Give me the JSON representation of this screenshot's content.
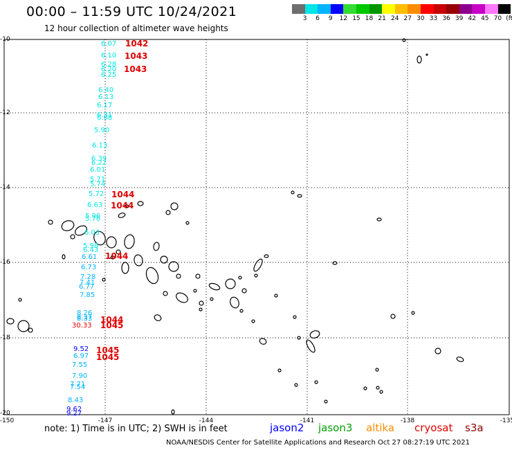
{
  "title": "00:00 – 11:59 UTC 10/24/2021",
  "subtitle": "12 hour collection of altimeter wave heights",
  "colorbar": {
    "colors": [
      "#6e6e6e",
      "#00e5e5",
      "#00b4ff",
      "#0000ff",
      "#32dc32",
      "#00c800",
      "#009600",
      "#ffff00",
      "#ffbe00",
      "#ff8c00",
      "#ff0000",
      "#c80000",
      "#960000",
      "#8c008c",
      "#c800c8",
      "#ff78ff",
      "#000000"
    ],
    "labels": [
      "3",
      "6",
      "9",
      "12",
      "15",
      "18",
      "21",
      "24",
      "27",
      "30",
      "33",
      "36",
      "39",
      "42",
      "45",
      "70",
      "(ft)"
    ]
  },
  "axes": {
    "y_labels": [
      "-10",
      "-12",
      "-14",
      "-16",
      "-18",
      "-20"
    ],
    "x_labels": [
      "-150",
      "-147",
      "-144",
      "-141",
      "-138",
      "-135"
    ]
  },
  "observations": [
    {
      "v": "6.07",
      "c": "#00e5e5"
    },
    {
      "v": "6.10",
      "c": "#00e5e5"
    },
    {
      "v": "6.28",
      "c": "#00e5e5"
    },
    {
      "v": "6.20",
      "c": "#00e5e5"
    },
    {
      "v": "6.25",
      "c": "#00e5e5"
    },
    {
      "v": "6.40",
      "c": "#00e5e5"
    },
    {
      "v": "6.13",
      "c": "#00e5e5"
    },
    {
      "v": "6.17",
      "c": "#00e5e5"
    },
    {
      "v": "6.31",
      "c": "#00e5e5"
    },
    {
      "v": "6.08",
      "c": "#00e5e5"
    },
    {
      "v": "5.90",
      "c": "#00e5e5"
    },
    {
      "v": "6.13",
      "c": "#00e5e5"
    },
    {
      "v": "6.39",
      "c": "#00e5e5"
    },
    {
      "v": "6.22",
      "c": "#00e5e5"
    },
    {
      "v": "6.01",
      "c": "#00e5e5"
    },
    {
      "v": "5.71",
      "c": "#00e5e5"
    },
    {
      "v": "5.74",
      "c": "#00e5e5"
    },
    {
      "v": "5.72",
      "c": "#00e5e5"
    },
    {
      "v": "6.63",
      "c": "#00e5e5"
    },
    {
      "v": "5.96",
      "c": "#00e5e5"
    },
    {
      "v": "5.76",
      "c": "#00e5e5"
    },
    {
      "v": "6.03",
      "c": "#00e5e5"
    },
    {
      "v": "5.98",
      "c": "#00e5e5"
    },
    {
      "v": "6.43",
      "c": "#00e5e5"
    },
    {
      "v": "6.61",
      "c": "#00b4ff"
    },
    {
      "v": "6.73",
      "c": "#00b4ff"
    },
    {
      "v": "7.28",
      "c": "#00b4ff"
    },
    {
      "v": "7.41",
      "c": "#00b4ff"
    },
    {
      "v": "6.77",
      "c": "#00b4ff"
    },
    {
      "v": "7.85",
      "c": "#00b4ff"
    },
    {
      "v": "8.26",
      "c": "#00b4ff"
    },
    {
      "v": "8.37",
      "c": "#00b4ff"
    },
    {
      "v": "8.33",
      "c": "#00b4ff"
    },
    {
      "v": "30.33",
      "c": "#e00000"
    },
    {
      "v": "9.52",
      "c": "#0000ff"
    },
    {
      "v": "6.97",
      "c": "#00b4ff"
    },
    {
      "v": "7.55",
      "c": "#00b4ff"
    },
    {
      "v": "7.90",
      "c": "#00b4ff"
    },
    {
      "v": "7.71",
      "c": "#00b4ff"
    },
    {
      "v": "7.54",
      "c": "#00b4ff"
    },
    {
      "v": "8.43",
      "c": "#00b4ff"
    },
    {
      "v": "9.62",
      "c": "#0000ff"
    },
    {
      "v": "9.27",
      "c": "#0000ff"
    }
  ],
  "cyclone_times": [
    "1042",
    "1043",
    "1043",
    "1044",
    "1044",
    "1044",
    "1044",
    "1045",
    "1045",
    "1045"
  ],
  "note": "note: 1) Time is in UTC; 2) SWH is in feet",
  "satellites": [
    {
      "name": "jason2",
      "color": "#0000ff"
    },
    {
      "name": "jason3",
      "color": "#00a000"
    },
    {
      "name": "altika",
      "color": "#ff8c00"
    },
    {
      "name": "cryosat",
      "color": "#e00000"
    },
    {
      "name": "s3a",
      "color": "#8c0000"
    }
  ],
  "credit": "NOAA/NESDIS Center for Satellite Applications and Research   Oct 27 08:27:19 UTC 2021"
}
